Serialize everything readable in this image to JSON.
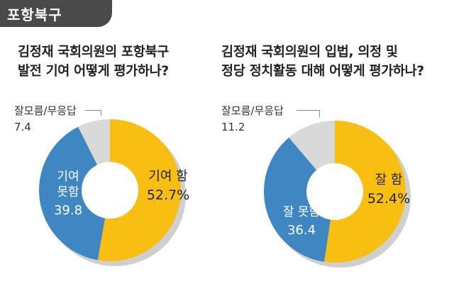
{
  "tag": "포항북구",
  "colors": {
    "good": "#f9be12",
    "bad": "#3f87c2",
    "na": "#d9d9d9",
    "shadow": "#cfcfcf",
    "tag_bg": "#4a4a4a"
  },
  "chart_data": [
    {
      "type": "pie",
      "title_line1": "김정재 국회의원의 포항북구",
      "title_line2": "발전 기여 어떻게 평가하나?",
      "series": [
        {
          "name": "기여 함",
          "value": 52.7,
          "value_label": "52.7%"
        },
        {
          "name": "기여 못함",
          "name_line1": "기여",
          "name_line2": "못함",
          "value": 39.8,
          "value_label": "39.8"
        },
        {
          "name": "잘모름/무응답",
          "value": 7.4,
          "value_label": "7.4"
        }
      ]
    },
    {
      "type": "pie",
      "title_line1": "김정재 국회의원의 입법, 의정 및",
      "title_line2": "정당 정치활동 대해 어떻게 평가하나?",
      "series": [
        {
          "name": "잘 함",
          "value": 52.4,
          "value_label": "52.4%"
        },
        {
          "name": "잘 못함",
          "value": 36.4,
          "value_label": "36.4"
        },
        {
          "name": "잘모름/무응답",
          "value": 11.2,
          "value_label": "11.2"
        }
      ]
    }
  ]
}
